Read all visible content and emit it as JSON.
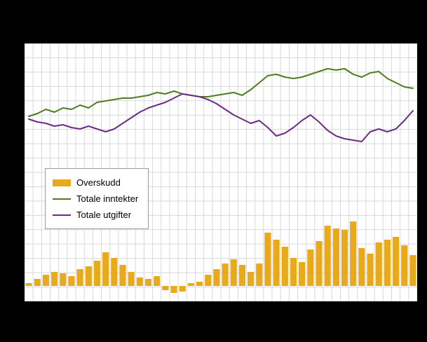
{
  "chart_data": {
    "type": "combo-bar-line",
    "n_points": 46,
    "title": "",
    "xlabel": "",
    "ylabel": "",
    "axis_tick_labels_visible": false,
    "grid": true,
    "legend_position": "middle-left",
    "series": [
      {
        "name": "Overskudd",
        "kind": "bar",
        "values": [
          2,
          5,
          8,
          10,
          9,
          7,
          12,
          14,
          18,
          24,
          20,
          15,
          10,
          6,
          5,
          7,
          -3,
          -5,
          -4,
          2,
          3,
          8,
          12,
          16,
          19,
          15,
          10,
          16,
          38,
          33,
          28,
          20,
          17,
          26,
          32,
          43,
          41,
          40,
          46,
          27,
          23,
          31,
          33,
          35,
          29,
          22
        ]
      },
      {
        "name": "Totale inntekter",
        "kind": "line",
        "values": [
          121,
          123,
          126,
          124,
          127,
          126,
          129,
          127,
          131,
          132,
          133,
          134,
          134,
          135,
          136,
          138,
          137,
          139,
          137,
          136,
          135,
          135,
          136,
          137,
          138,
          136,
          140,
          145,
          150,
          151,
          149,
          148,
          149,
          151,
          153,
          155,
          154,
          155,
          151,
          149,
          152,
          153,
          148,
          145,
          142,
          141
        ]
      },
      {
        "name": "Totale utgifter",
        "kind": "line",
        "values": [
          119,
          117,
          116,
          114,
          115,
          113,
          112,
          114,
          112,
          110,
          112,
          116,
          120,
          124,
          127,
          129,
          131,
          134,
          137,
          136,
          135,
          133,
          130,
          126,
          122,
          119,
          116,
          118,
          113,
          107,
          109,
          113,
          118,
          122,
          117,
          111,
          107,
          105,
          104,
          103,
          110,
          112,
          110,
          112,
          118,
          125
        ]
      }
    ],
    "value_axis_range": [
      -20,
      173
    ],
    "baseline_value": 0
  },
  "legend": {
    "items": [
      {
        "label": "Overskudd",
        "color": "#e8a91b",
        "kind": "bar"
      },
      {
        "label": "Totale inntekter",
        "color": "#4e7d20",
        "kind": "line"
      },
      {
        "label": "Totale utgifter",
        "color": "#6a2d87",
        "kind": "line"
      }
    ]
  },
  "colors": {
    "background": "#000000",
    "plot_background": "#ffffff",
    "grid": "#d8d8d8",
    "bar": "#e8a91b",
    "line_income": "#4e7d20",
    "line_expense": "#6a2d87",
    "legend_border": "#9a9a9a"
  }
}
